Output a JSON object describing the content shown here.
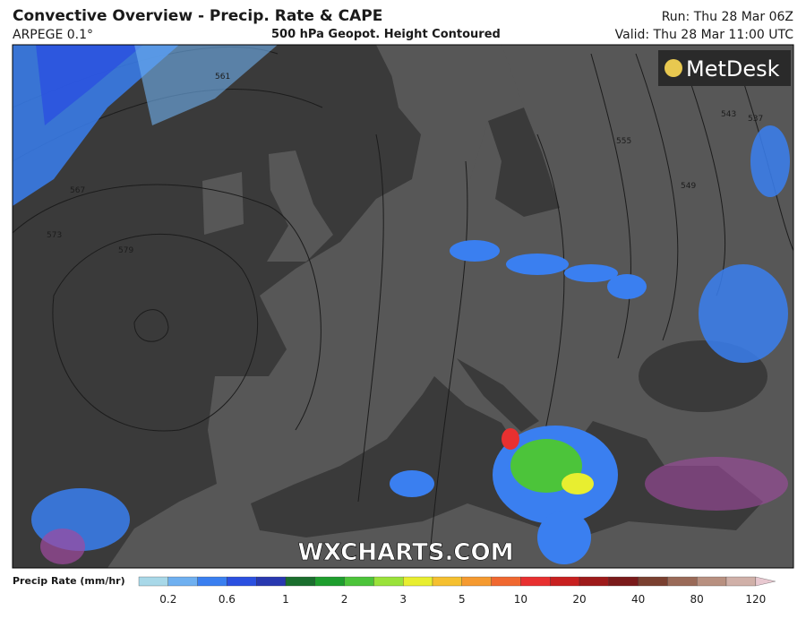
{
  "header": {
    "title": "Convective Overview - Precip. Rate & CAPE",
    "model": "ARPEGE 0.1°",
    "subtitle": "500 hPa Geopot. Height Contoured",
    "run": "Run: Thu 28 Mar 06Z",
    "valid": "Valid: Thu 28 Mar 11:00 UTC"
  },
  "map": {
    "brand": "MetDesk",
    "watermark": "WXCHARTS.COM",
    "contour_labels": [
      "561",
      "567",
      "573",
      "579",
      "555",
      "549",
      "543",
      "537"
    ]
  },
  "colorbar": {
    "label": "Precip Rate (mm/hr)",
    "ticks": [
      "0.2",
      "0.6",
      "1",
      "2",
      "3",
      "5",
      "10",
      "20",
      "40",
      "80",
      "120"
    ]
  }
}
